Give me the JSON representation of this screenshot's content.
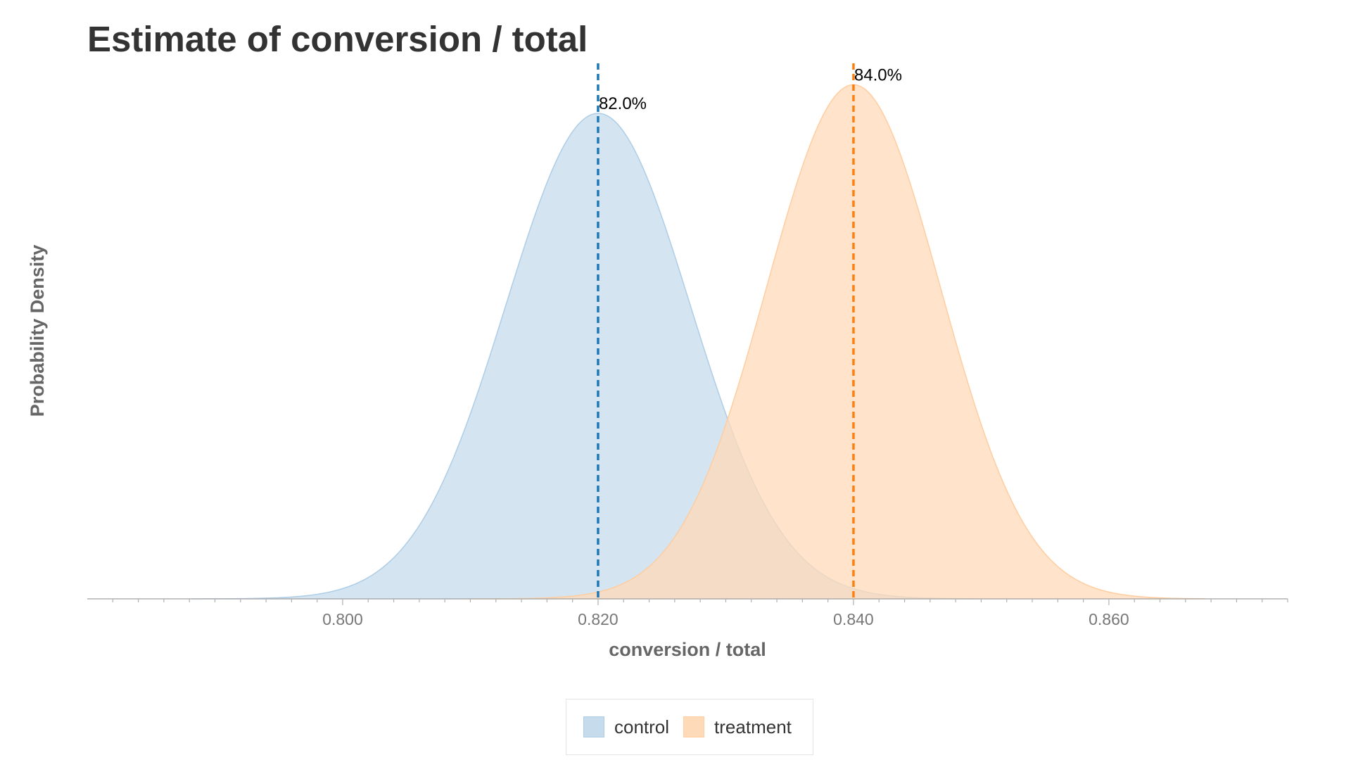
{
  "chart_data": {
    "type": "area",
    "title": "Estimate of conversion / total",
    "xlabel": "conversion / total",
    "ylabel": "Probability Density",
    "xlim": [
      0.78,
      0.874
    ],
    "x_ticks": [
      "0.800",
      "0.820",
      "0.840",
      "0.860"
    ],
    "x_tick_values": [
      0.8,
      0.82,
      0.84,
      0.86
    ],
    "y_ticks_shown": false,
    "grid": false,
    "legend_position": "bottom-center",
    "series": [
      {
        "name": "control",
        "distribution": "normal",
        "mean": 0.82,
        "std": 0.0072,
        "support": [
          0.7882,
          0.8497
        ],
        "peak_density": 55.4,
        "mean_label": "82.0%",
        "fill_color": "#c6dbec",
        "stroke_color": "#aecde6",
        "line_color": "#1f77b4"
      },
      {
        "name": "treatment",
        "distribution": "normal",
        "mean": 0.84,
        "std": 0.0068,
        "support": [
          0.81,
          0.8675
        ],
        "peak_density": 58.7,
        "mean_label": "84.0%",
        "fill_color": "#ffdab8",
        "stroke_color": "#ffcda0",
        "line_color": "#ff7f0e"
      }
    ]
  }
}
